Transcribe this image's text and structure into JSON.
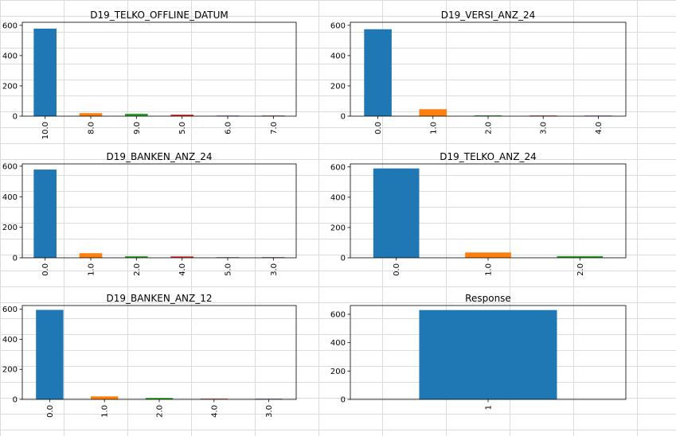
{
  "colors": [
    "#1f77b4",
    "#ff7f0e",
    "#2ca02c",
    "#d62728",
    "#9467bd",
    "#8c564b"
  ],
  "chart_data": [
    {
      "type": "bar",
      "title": "D19_TELKO_OFFLINE_DATUM",
      "categories": [
        "10.0",
        "8.0",
        "9.0",
        "5.0",
        "6.0",
        "7.0"
      ],
      "values": [
        578,
        20,
        16,
        10,
        1,
        1
      ],
      "ylim": [
        0,
        620
      ],
      "yticks": [
        0,
        200,
        400,
        600
      ],
      "grid": false,
      "legend": "none"
    },
    {
      "type": "bar",
      "title": "D19_VERSI_ANZ_24",
      "categories": [
        "0.0",
        "1.0",
        "2.0",
        "3.0",
        "4.0"
      ],
      "values": [
        574,
        46,
        5,
        1,
        1
      ],
      "ylim": [
        0,
        620
      ],
      "yticks": [
        0,
        200,
        400,
        600
      ],
      "grid": false,
      "legend": "none"
    },
    {
      "type": "bar",
      "title": "D19_BANKEN_ANZ_24",
      "categories": [
        "0.0",
        "1.0",
        "2.0",
        "4.0",
        "5.0",
        "3.0"
      ],
      "values": [
        578,
        30,
        10,
        9,
        2,
        2
      ],
      "ylim": [
        0,
        615
      ],
      "yticks": [
        0,
        200,
        400,
        600
      ],
      "grid": false,
      "legend": "none"
    },
    {
      "type": "bar",
      "title": "D19_TELKO_ANZ_24",
      "categories": [
        "0.0",
        "1.0",
        "2.0"
      ],
      "values": [
        590,
        35,
        11
      ],
      "ylim": [
        0,
        620
      ],
      "yticks": [
        0,
        200,
        400,
        600
      ],
      "grid": false,
      "legend": "none"
    },
    {
      "type": "bar",
      "title": "D19_BANKEN_ANZ_12",
      "categories": [
        "0.0",
        "1.0",
        "2.0",
        "4.0",
        "3.0"
      ],
      "values": [
        596,
        20,
        10,
        4,
        1
      ],
      "ylim": [
        0,
        625
      ],
      "yticks": [
        0,
        200,
        400,
        600
      ],
      "grid": false,
      "legend": "none"
    },
    {
      "type": "bar",
      "title": "Response",
      "categories": [
        "1"
      ],
      "values": [
        630
      ],
      "ylim": [
        0,
        662
      ],
      "yticks": [
        0,
        200,
        400,
        600
      ],
      "grid": false,
      "legend": "none"
    }
  ]
}
